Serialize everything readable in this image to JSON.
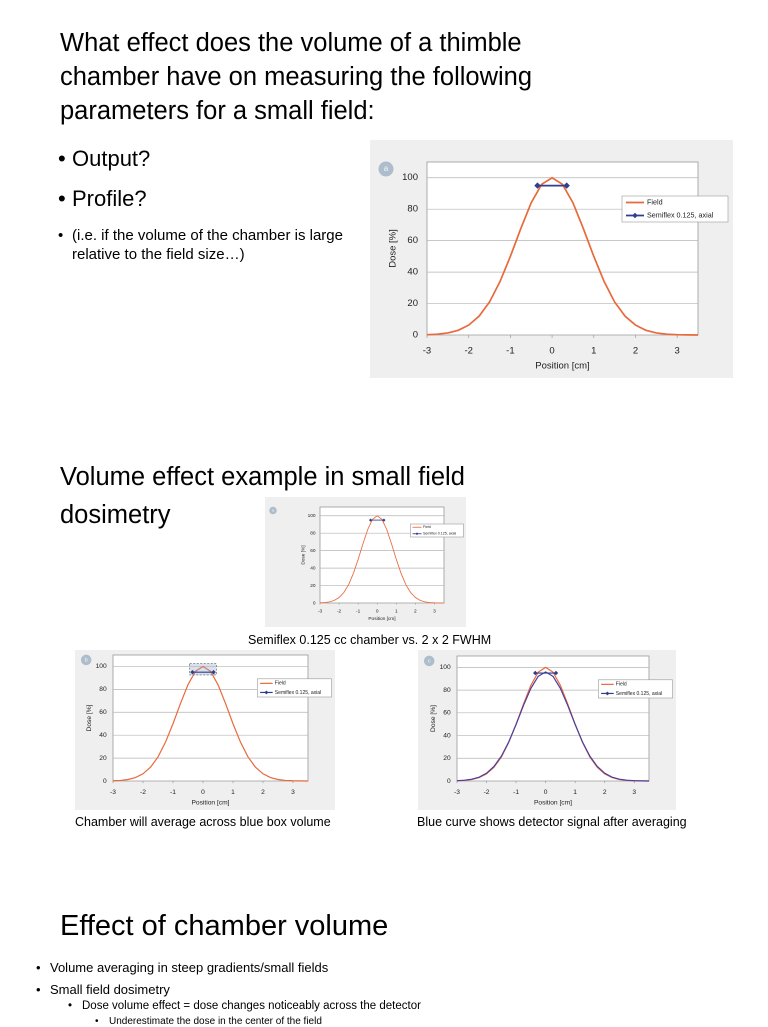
{
  "slides": [
    {
      "title_lines": [
        "What effect does the volume of a thimble",
        "chamber have on measuring the following",
        "parameters for a small field:"
      ],
      "bullets": [
        "Output?",
        "Profile?"
      ],
      "note": "(i.e. if the volume of the chamber is large relative to the field size…)"
    },
    {
      "title_lines": [
        "Volume effect example in small field",
        "dosimetry"
      ],
      "caption": "Semiflex 0.125 cc chamber vs. 2 x 2 FWHM",
      "caption_left": "Chamber will average across blue box volume",
      "caption_right": "Blue curve shows detector signal after averaging"
    },
    {
      "title": "Effect of chamber volume",
      "bullets": [
        "Volume averaging in steep gradients/small fields",
        "Small field dosimetry"
      ],
      "sub_bullet": "Dose volume effect = dose changes noticeably across the detector",
      "sub_sub_bullet": "Underestimate the dose in the center of the field"
    }
  ],
  "chart_data": [
    {
      "type": "line",
      "panel": "a",
      "ylabel": "Dose [%]",
      "xlabel": "Position [cm]",
      "xlim": [
        -3,
        3.5
      ],
      "ylim": [
        0,
        110
      ],
      "xticks": [
        -3,
        -2,
        -1,
        0,
        1,
        2,
        3
      ],
      "yticks": [
        0,
        20,
        40,
        60,
        80,
        100
      ],
      "grid": true,
      "legend": "upper right",
      "series": [
        {
          "name": "Field",
          "color": "#e8693a",
          "x": [
            -3,
            -2.75,
            -2.5,
            -2.25,
            -2,
            -1.75,
            -1.5,
            -1.25,
            -1,
            -0.75,
            -0.5,
            -0.25,
            0,
            0.25,
            0.5,
            0.75,
            1,
            1.25,
            1.5,
            1.75,
            2,
            2.25,
            2.5,
            2.75,
            3,
            3.25,
            3.5
          ],
          "values": [
            0.2,
            0.5,
            1.3,
            3.0,
            6.3,
            12.0,
            21.0,
            33.9,
            50,
            67.7,
            84.1,
            95.8,
            100,
            95.8,
            84.1,
            67.7,
            50,
            33.9,
            21.0,
            12.0,
            6.3,
            3.0,
            1.3,
            0.5,
            0.2,
            0.1,
            0
          ]
        },
        {
          "name": "Semiflex 0.125, axial",
          "color": "#2e3f8f",
          "marker": "diamond",
          "x": [
            -0.35,
            0.35
          ],
          "values": [
            95,
            95
          ]
        }
      ]
    },
    {
      "type": "line",
      "panel": "a",
      "ylabel": "Dose [%]",
      "xlabel": "Position [cm]",
      "xlim": [
        -3,
        3.5
      ],
      "ylim": [
        0,
        110
      ],
      "xticks": [
        -3,
        -2,
        -1,
        0,
        1,
        2,
        3
      ],
      "yticks": [
        0,
        20,
        40,
        60,
        80,
        100
      ],
      "grid": true,
      "legend": "upper right",
      "series": [
        {
          "name": "Field",
          "color": "#e8693a",
          "x": [
            -3,
            -2.75,
            -2.5,
            -2.25,
            -2,
            -1.75,
            -1.5,
            -1.25,
            -1,
            -0.75,
            -0.5,
            -0.25,
            0,
            0.25,
            0.5,
            0.75,
            1,
            1.25,
            1.5,
            1.75,
            2,
            2.25,
            2.5,
            2.75,
            3,
            3.25,
            3.5
          ],
          "values": [
            0.2,
            0.5,
            1.3,
            3.0,
            6.3,
            12.0,
            21.0,
            33.9,
            50,
            67.7,
            84.1,
            95.8,
            100,
            95.8,
            84.1,
            67.7,
            50,
            33.9,
            21.0,
            12.0,
            6.3,
            3.0,
            1.3,
            0.5,
            0.2,
            0.1,
            0
          ]
        },
        {
          "name": "Semiflex 0.125, axial",
          "color": "#2e3f8f",
          "marker": "diamond",
          "x": [
            -0.35,
            0.35
          ],
          "values": [
            95,
            95
          ]
        }
      ]
    },
    {
      "type": "line",
      "panel": "b",
      "ylabel": "Dose [%]",
      "xlabel": "Position [cm]",
      "volume_box": true,
      "xlim": [
        -3,
        3.5
      ],
      "ylim": [
        0,
        110
      ],
      "xticks": [
        -3,
        -2,
        -1,
        0,
        1,
        2,
        3
      ],
      "yticks": [
        0,
        20,
        40,
        60,
        80,
        100
      ],
      "grid": true,
      "legend": "upper right",
      "series": [
        {
          "name": "Field",
          "color": "#e8693a",
          "x": [
            -3,
            -2.75,
            -2.5,
            -2.25,
            -2,
            -1.75,
            -1.5,
            -1.25,
            -1,
            -0.75,
            -0.5,
            -0.25,
            0,
            0.25,
            0.5,
            0.75,
            1,
            1.25,
            1.5,
            1.75,
            2,
            2.25,
            2.5,
            2.75,
            3,
            3.25,
            3.5
          ],
          "values": [
            0.2,
            0.5,
            1.3,
            3.0,
            6.3,
            12.0,
            21.0,
            33.9,
            50,
            67.7,
            84.1,
            95.8,
            100,
            95.8,
            84.1,
            67.7,
            50,
            33.9,
            21.0,
            12.0,
            6.3,
            3.0,
            1.3,
            0.5,
            0.2,
            0.1,
            0
          ]
        },
        {
          "name": "Semiflex 0.125, axial",
          "color": "#2e3f8f",
          "marker": "diamond",
          "x": [
            -0.35,
            0.35
          ],
          "values": [
            95,
            95
          ]
        }
      ]
    },
    {
      "type": "line",
      "panel": "c",
      "ylabel": "Dose [%]",
      "xlabel": "Position [cm]",
      "xlim": [
        -3,
        3.5
      ],
      "ylim": [
        0,
        110
      ],
      "xticks": [
        -3,
        -2,
        -1,
        0,
        1,
        2,
        3
      ],
      "yticks": [
        0,
        20,
        40,
        60,
        80,
        100
      ],
      "grid": true,
      "legend": "upper right",
      "series": [
        {
          "name": "Field",
          "color": "#e8693a",
          "x": [
            -3,
            -2.75,
            -2.5,
            -2.25,
            -2,
            -1.75,
            -1.5,
            -1.25,
            -1,
            -0.75,
            -0.5,
            -0.25,
            0,
            0.25,
            0.5,
            0.75,
            1,
            1.25,
            1.5,
            1.75,
            2,
            2.25,
            2.5,
            2.75,
            3,
            3.25,
            3.5
          ],
          "values": [
            0.2,
            0.5,
            1.3,
            3.0,
            6.3,
            12.0,
            21.0,
            33.9,
            50,
            67.7,
            84.1,
            95.8,
            100,
            95.8,
            84.1,
            67.7,
            50,
            33.9,
            21.0,
            12.0,
            6.3,
            3.0,
            1.3,
            0.5,
            0.2,
            0.1,
            0
          ]
        },
        {
          "color": "#4b3f9e",
          "x": [
            -3,
            -2.75,
            -2.5,
            -2.25,
            -2,
            -1.75,
            -1.5,
            -1.25,
            -1,
            -0.75,
            -0.5,
            -0.25,
            0,
            0.25,
            0.5,
            0.75,
            1,
            1.25,
            1.5,
            1.75,
            2,
            2.25,
            2.5,
            2.75,
            3,
            3.25,
            3.5
          ],
          "values": [
            0.3,
            0.7,
            1.6,
            3.4,
            6.9,
            12.8,
            21.8,
            34.3,
            49.7,
            66.4,
            81.5,
            92.1,
            96,
            92.1,
            81.5,
            66.4,
            49.7,
            34.3,
            21.8,
            12.8,
            6.9,
            3.4,
            1.6,
            0.7,
            0.3,
            0.1,
            0
          ]
        },
        {
          "name": "Semiflex 0.125, axial",
          "color": "#2e3f8f",
          "marker": "diamond",
          "x": [
            -0.35,
            0.35
          ],
          "values": [
            95,
            95
          ]
        }
      ]
    }
  ]
}
